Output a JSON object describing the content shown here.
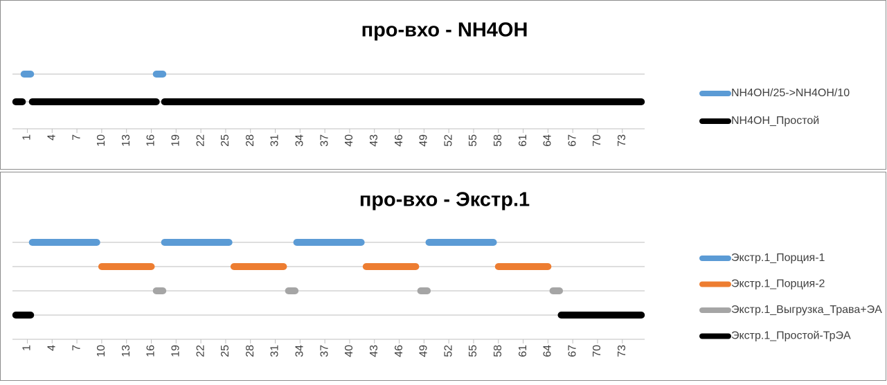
{
  "chart_data": [
    {
      "type": "gantt",
      "title": "про-вхо - NH4OH",
      "xlim": [
        -0.8,
        75.7
      ],
      "xticks": [
        1,
        4,
        7,
        10,
        13,
        16,
        19,
        22,
        25,
        28,
        31,
        34,
        37,
        40,
        43,
        46,
        49,
        52,
        55,
        58,
        61,
        64,
        67,
        70,
        73
      ],
      "grid": true,
      "legend": "right",
      "series": [
        {
          "name": "NH4OH/25->NH4OH/10",
          "color": "#5b9bd5",
          "values": [
            [
              0.6,
              1.4
            ],
            [
              16.6,
              17.4
            ]
          ]
        },
        {
          "name": "NH4OH_Простой",
          "color": "#000000",
          "values": [
            [
              -0.4,
              0.4
            ],
            [
              1.6,
              16.6
            ],
            [
              17.6,
              75.3
            ]
          ]
        }
      ]
    },
    {
      "type": "gantt",
      "title": "про-вхо - Экстр.1",
      "xlim": [
        -0.8,
        75.7
      ],
      "xticks": [
        1,
        4,
        7,
        10,
        13,
        16,
        19,
        22,
        25,
        28,
        31,
        34,
        37,
        40,
        43,
        46,
        49,
        52,
        55,
        58,
        61,
        64,
        67,
        70,
        73
      ],
      "grid": true,
      "legend": "right",
      "series": [
        {
          "name": "Экстр.1_Порция-1",
          "color": "#5b9bd5",
          "values": [
            [
              1.6,
              9.4
            ],
            [
              17.6,
              25.4
            ],
            [
              33.6,
              41.4
            ],
            [
              49.6,
              57.4
            ]
          ]
        },
        {
          "name": "Экстр.1_Порция-2",
          "color": "#ed7d31",
          "values": [
            [
              10,
              16
            ],
            [
              26,
              32
            ],
            [
              42,
              48
            ],
            [
              58,
              64
            ]
          ]
        },
        {
          "name": "Экстр.1_Выгрузка_Трава+ЭА",
          "color": "#a5a5a5",
          "values": [
            [
              16.6,
              17.4
            ],
            [
              32.6,
              33.4
            ],
            [
              48.6,
              49.4
            ],
            [
              64.6,
              65.4
            ]
          ]
        },
        {
          "name": "Экстр.1_Простой-ТрЭА",
          "color": "#000000",
          "values": [
            [
              -0.4,
              1.4
            ],
            [
              65.6,
              75.3
            ]
          ]
        }
      ]
    }
  ]
}
